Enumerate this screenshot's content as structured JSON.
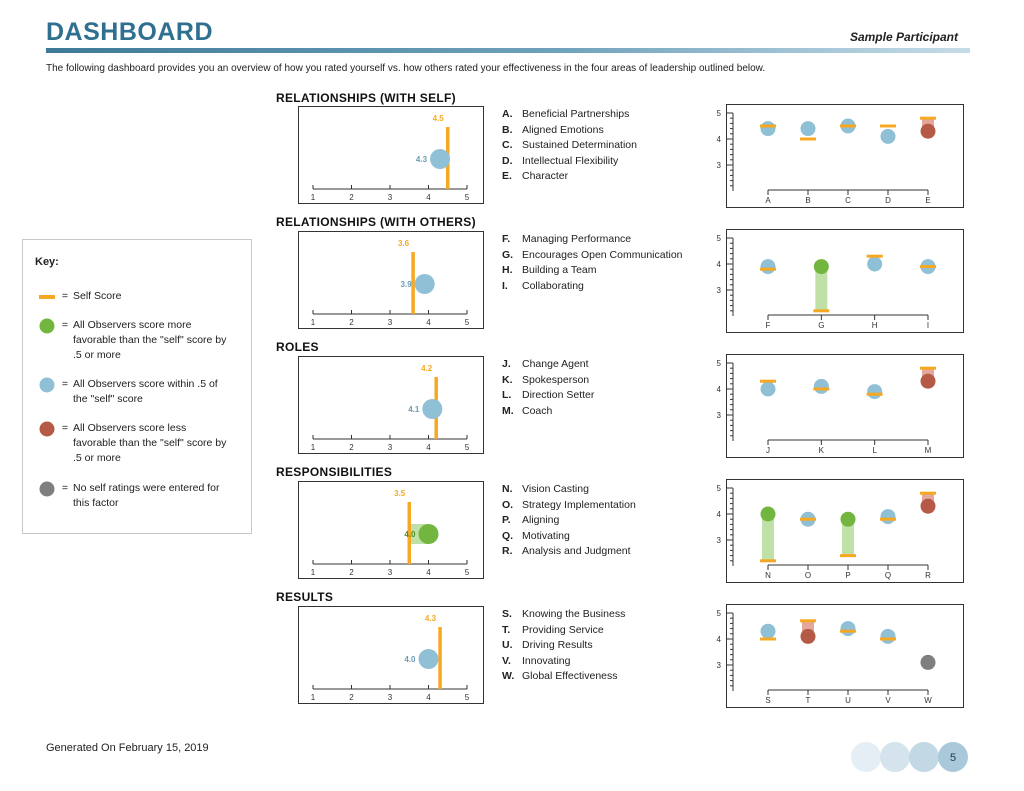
{
  "header": {
    "title": "DASHBOARD",
    "participant": "Sample Participant"
  },
  "intro": "The following dashboard provides you an overview of how you rated yourself vs. how others rated your effectiveness in the four areas of leadership outlined below.",
  "colors": {
    "self": "#f7a823",
    "green": "#72b63f",
    "blue": "#8fc0d6",
    "red": "#b65a48",
    "gray": "#7f7f7f",
    "title": "#2f6f8f"
  },
  "key": {
    "title": "Key:",
    "eq": "=",
    "items": [
      {
        "type": "self",
        "text": "Self Score"
      },
      {
        "type": "green",
        "text": "All Observers score more favorable than the \"self\" score by .5 or more"
      },
      {
        "type": "blue",
        "text": "All Observers score within .5 of the \"self\" score"
      },
      {
        "type": "red",
        "text": "All Observers score less favorable than the \"self\" score by .5 or more"
      },
      {
        "type": "gray",
        "text": "No self ratings were entered for this factor"
      }
    ]
  },
  "sections": [
    {
      "title": "RELATIONSHIPS (WITH SELF)",
      "gauge": {
        "self": 4.5,
        "self_label": "4.5",
        "obs": 4.3,
        "obs_label": "4.3",
        "color": "blue"
      },
      "competencies": [
        {
          "letter": "A.",
          "name": "Beneficial Partnerships"
        },
        {
          "letter": "B.",
          "name": "Aligned Emotions"
        },
        {
          "letter": "C.",
          "name": "Sustained Determination"
        },
        {
          "letter": "D.",
          "name": "Intellectual Flexibility"
        },
        {
          "letter": "E.",
          "name": "Character"
        }
      ],
      "dots": [
        {
          "label": "A",
          "self": 4.5,
          "obs": 4.4,
          "color": "blue"
        },
        {
          "label": "B",
          "self": 4.0,
          "obs": 4.4,
          "color": "blue"
        },
        {
          "label": "C",
          "self": 4.5,
          "obs": 4.5,
          "color": "blue"
        },
        {
          "label": "D",
          "self": 4.5,
          "obs": 4.1,
          "color": "blue"
        },
        {
          "label": "E",
          "self": 4.8,
          "obs": 4.3,
          "color": "red"
        }
      ]
    },
    {
      "title": "RELATIONSHIPS (WITH OTHERS)",
      "gauge": {
        "self": 3.6,
        "self_label": "3.6",
        "obs": 3.9,
        "obs_label": "3.9",
        "color": "blue"
      },
      "competencies": [
        {
          "letter": "F.",
          "name": "Managing Performance"
        },
        {
          "letter": "G.",
          "name": "Encourages Open Communication"
        },
        {
          "letter": "H.",
          "name": "Building a Team"
        },
        {
          "letter": "I.",
          "name": "Collaborating"
        }
      ],
      "dots": [
        {
          "label": "F",
          "self": 3.8,
          "obs": 3.9,
          "color": "blue"
        },
        {
          "label": "G",
          "self": 2.2,
          "obs": 3.9,
          "color": "green"
        },
        {
          "label": "H",
          "self": 4.3,
          "obs": 4.0,
          "color": "blue"
        },
        {
          "label": "I",
          "self": 3.9,
          "obs": 3.9,
          "color": "blue"
        }
      ]
    },
    {
      "title": "ROLES",
      "gauge": {
        "self": 4.2,
        "self_label": "4.2",
        "obs": 4.1,
        "obs_label": "4.1",
        "color": "blue"
      },
      "competencies": [
        {
          "letter": "J.",
          "name": "Change Agent"
        },
        {
          "letter": "K.",
          "name": "Spokesperson"
        },
        {
          "letter": "L.",
          "name": "Direction Setter"
        },
        {
          "letter": "M.",
          "name": "Coach"
        }
      ],
      "dots": [
        {
          "label": "J",
          "self": 4.3,
          "obs": 4.0,
          "color": "blue"
        },
        {
          "label": "K",
          "self": 4.0,
          "obs": 4.1,
          "color": "blue"
        },
        {
          "label": "L",
          "self": 3.8,
          "obs": 3.9,
          "color": "blue"
        },
        {
          "label": "M",
          "self": 4.8,
          "obs": 4.3,
          "color": "red"
        }
      ]
    },
    {
      "title": "RESPONSIBILITIES",
      "gauge": {
        "self": 3.5,
        "self_label": "3.5",
        "obs": 4.0,
        "obs_label": "4.0",
        "color": "green"
      },
      "competencies": [
        {
          "letter": "N.",
          "name": "Vision Casting"
        },
        {
          "letter": "O.",
          "name": "Strategy Implementation"
        },
        {
          "letter": "P.",
          "name": "Aligning"
        },
        {
          "letter": "Q.",
          "name": "Motivating"
        },
        {
          "letter": "R.",
          "name": "Analysis and Judgment"
        }
      ],
      "dots": [
        {
          "label": "N",
          "self": 2.2,
          "obs": 4.0,
          "color": "green"
        },
        {
          "label": "O",
          "self": 3.8,
          "obs": 3.8,
          "color": "blue"
        },
        {
          "label": "P",
          "self": 2.4,
          "obs": 3.8,
          "color": "green"
        },
        {
          "label": "Q",
          "self": 3.8,
          "obs": 3.9,
          "color": "blue"
        },
        {
          "label": "R",
          "self": 4.8,
          "obs": 4.3,
          "color": "red"
        }
      ]
    },
    {
      "title": "RESULTS",
      "gauge": {
        "self": 4.3,
        "self_label": "4.3",
        "obs": 4.0,
        "obs_label": "4.0",
        "color": "blue"
      },
      "competencies": [
        {
          "letter": "S.",
          "name": "Knowing the Business"
        },
        {
          "letter": "T.",
          "name": "Providing Service"
        },
        {
          "letter": "U.",
          "name": "Driving Results"
        },
        {
          "letter": "V.",
          "name": "Innovating"
        },
        {
          "letter": "W.",
          "name": "Global Effectiveness"
        }
      ],
      "dots": [
        {
          "label": "S",
          "self": 4.0,
          "obs": 4.3,
          "color": "blue"
        },
        {
          "label": "T",
          "self": 4.7,
          "obs": 4.1,
          "color": "red"
        },
        {
          "label": "U",
          "self": 4.3,
          "obs": 4.4,
          "color": "blue"
        },
        {
          "label": "V",
          "self": 4.0,
          "obs": 4.1,
          "color": "blue"
        },
        {
          "label": "W",
          "self": null,
          "obs": 3.1,
          "color": "gray"
        }
      ]
    }
  ],
  "gauge_ticks": [
    "1",
    "2",
    "3",
    "4",
    "5"
  ],
  "dot_ticks": [
    "5",
    "4",
    "3"
  ],
  "chart_data": [
    {
      "type": "scatter",
      "title": "RELATIONSHIPS (WITH SELF)",
      "categories": [
        "A",
        "B",
        "C",
        "D",
        "E"
      ],
      "series": [
        {
          "name": "Self Score",
          "values": [
            4.5,
            4.0,
            4.5,
            4.5,
            4.8
          ]
        },
        {
          "name": "All Observers",
          "values": [
            4.4,
            4.4,
            4.5,
            4.1,
            4.3
          ]
        }
      ],
      "ylim": [
        2,
        5
      ]
    },
    {
      "type": "scatter",
      "title": "RELATIONSHIPS (WITH OTHERS)",
      "categories": [
        "F",
        "G",
        "H",
        "I"
      ],
      "series": [
        {
          "name": "Self Score",
          "values": [
            3.8,
            2.2,
            4.3,
            3.9
          ]
        },
        {
          "name": "All Observers",
          "values": [
            3.9,
            3.9,
            4.0,
            3.9
          ]
        }
      ],
      "ylim": [
        2,
        5
      ]
    },
    {
      "type": "scatter",
      "title": "ROLES",
      "categories": [
        "J",
        "K",
        "L",
        "M"
      ],
      "series": [
        {
          "name": "Self Score",
          "values": [
            4.3,
            4.0,
            3.8,
            4.8
          ]
        },
        {
          "name": "All Observers",
          "values": [
            4.0,
            4.1,
            3.9,
            4.3
          ]
        }
      ],
      "ylim": [
        2,
        5
      ]
    },
    {
      "type": "scatter",
      "title": "RESPONSIBILITIES",
      "categories": [
        "N",
        "O",
        "P",
        "Q",
        "R"
      ],
      "series": [
        {
          "name": "Self Score",
          "values": [
            2.2,
            3.8,
            2.4,
            3.8,
            4.8
          ]
        },
        {
          "name": "All Observers",
          "values": [
            4.0,
            3.8,
            3.8,
            3.9,
            4.3
          ]
        }
      ],
      "ylim": [
        2,
        5
      ]
    },
    {
      "type": "scatter",
      "title": "RESULTS",
      "categories": [
        "S",
        "T",
        "U",
        "V",
        "W"
      ],
      "series": [
        {
          "name": "Self Score",
          "values": [
            4.0,
            4.7,
            4.3,
            4.0,
            null
          ]
        },
        {
          "name": "All Observers",
          "values": [
            4.3,
            4.1,
            4.4,
            4.1,
            3.1
          ]
        }
      ],
      "ylim": [
        2,
        5
      ]
    }
  ],
  "footer": {
    "generated": "Generated On February 15, 2019",
    "page": "5"
  }
}
